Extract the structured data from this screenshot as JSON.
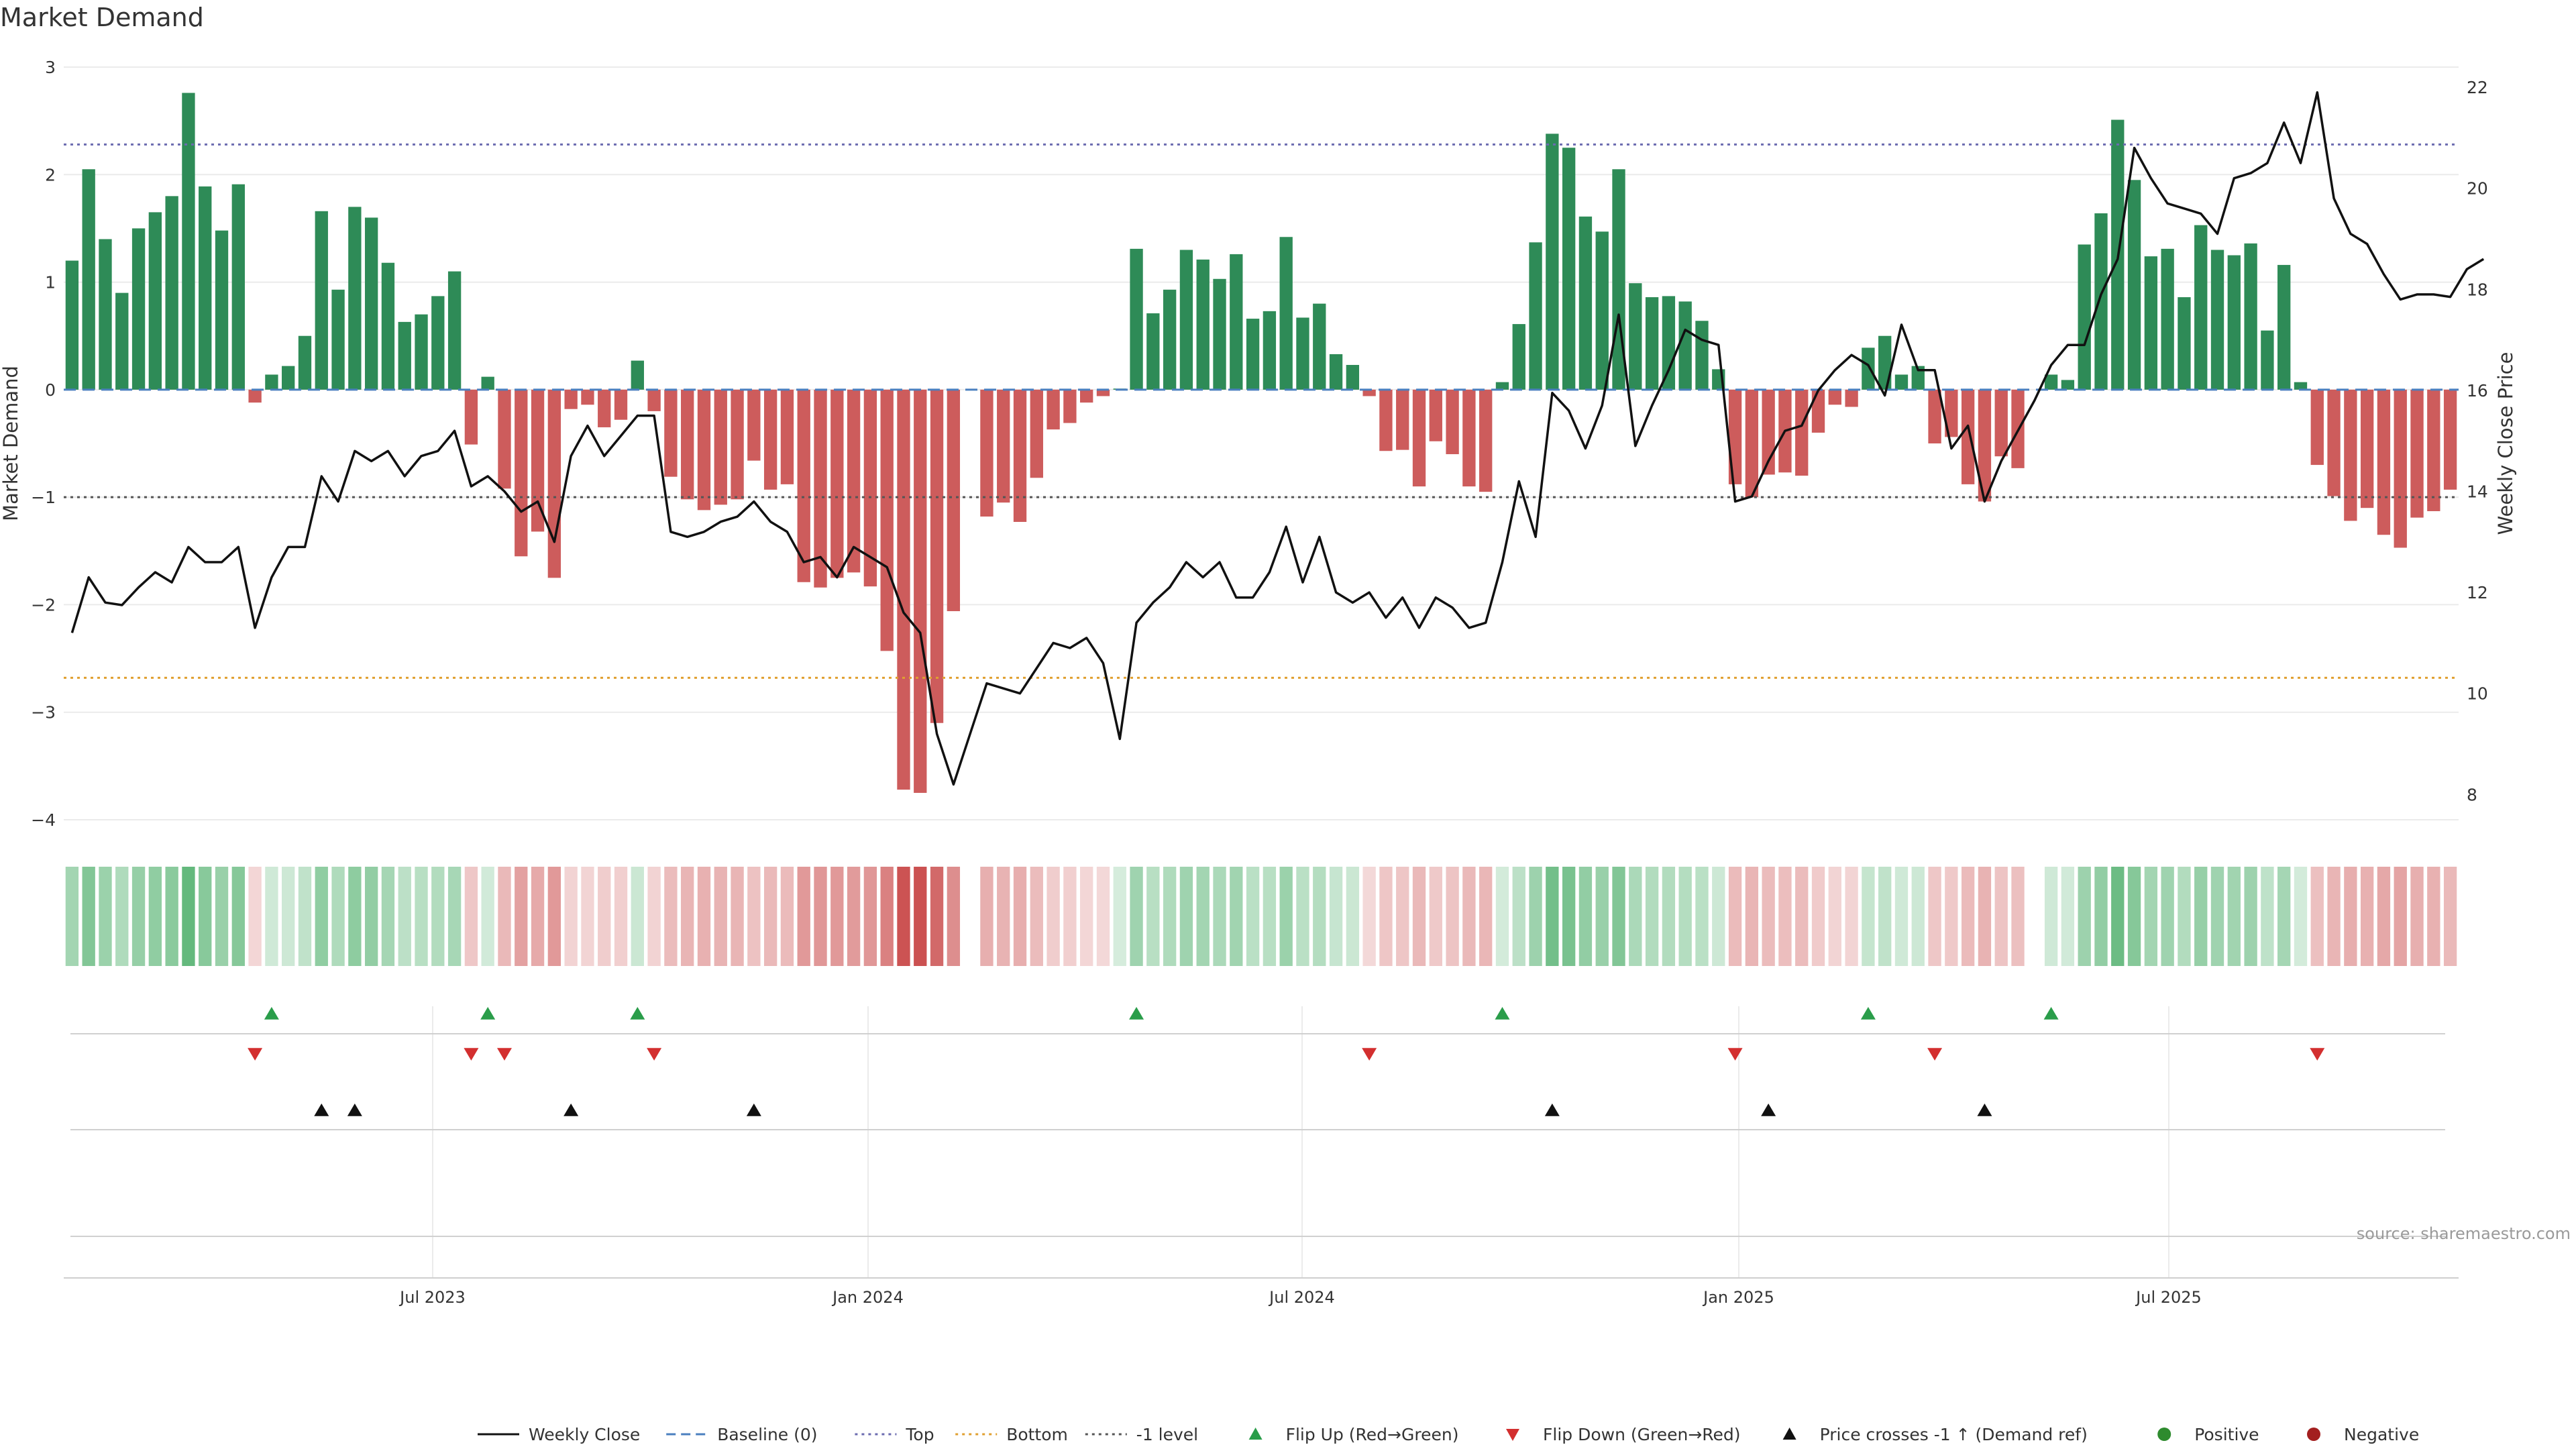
{
  "title": "Market Demand",
  "source_note": "source: sharemaestro.com",
  "colors": {
    "positive": "#2e8b57",
    "negative": "#cd5c5c",
    "price": "#111111",
    "baseline": "#4a7fbf",
    "top": "#6b6bb0",
    "bottom": "#e0a030",
    "minus_one": "#555555",
    "flip_up": "#2a9d4a",
    "flip_down": "#d32f2f",
    "cross": "#111111",
    "pos_dot": "#2e8b2e",
    "neg_dot": "#a31f1f"
  },
  "chart_data": {
    "type": "bar",
    "title": "Market Demand",
    "ylabel": "Market Demand",
    "ylabel_right": "Weekly Close Price",
    "ylim": [
      -4,
      3
    ],
    "ylim_right": [
      7.5,
      22.4
    ],
    "yticks": [
      "3",
      "2",
      "1",
      "0",
      "−1",
      "−2",
      "−3",
      "−4"
    ],
    "yticks_right": [
      "22",
      "20",
      "18",
      "16",
      "14",
      "12",
      "10",
      "8"
    ],
    "x_tick_labels": [
      "Jul 2023",
      "Jan 2024",
      "Jul 2024",
      "Jan 2025",
      "Jul 2025"
    ],
    "reference_levels": {
      "top": 2.28,
      "bottom": -2.68,
      "minus_one": -1.0,
      "baseline": 0
    },
    "demand": [
      1.2,
      2.05,
      1.4,
      0.9,
      1.5,
      1.65,
      1.8,
      2.76,
      1.89,
      1.48,
      1.91,
      -0.12,
      0.14,
      0.22,
      0.5,
      1.66,
      0.93,
      1.7,
      1.6,
      1.18,
      0.63,
      0.7,
      0.87,
      1.1,
      -0.51,
      0.12,
      -0.92,
      -1.55,
      -1.32,
      -1.75,
      -0.18,
      -0.14,
      -0.35,
      -0.28,
      0.27,
      -0.2,
      -0.81,
      -1.02,
      -1.12,
      -1.07,
      -1.02,
      -0.66,
      -0.93,
      -0.88,
      -1.79,
      -1.84,
      -1.75,
      -1.7,
      -1.83,
      -2.43,
      -3.72,
      -3.75,
      -3.1,
      -2.06,
      0,
      -1.18,
      -1.05,
      -1.23,
      -0.82,
      -0.37,
      -0.31,
      -0.12,
      -0.06,
      0.01,
      1.31,
      0.71,
      0.93,
      1.3,
      1.21,
      1.03,
      1.26,
      0.66,
      0.73,
      1.42,
      0.67,
      0.8,
      0.33,
      0.23,
      -0.06,
      -0.57,
      -0.56,
      -0.9,
      -0.48,
      -0.6,
      -0.9,
      -0.95,
      0.07,
      0.61,
      1.37,
      2.38,
      2.25,
      1.61,
      1.47,
      2.05,
      0.99,
      0.86,
      0.87,
      0.82,
      0.64,
      0.19,
      -0.88,
      -1.0,
      -0.79,
      -0.77,
      -0.8,
      -0.4,
      -0.14,
      -0.16,
      0.39,
      0.5,
      0.14,
      0.22,
      -0.5,
      -0.44,
      -0.88,
      -1.04,
      -0.62,
      -0.73,
      0,
      0.14,
      0.09,
      1.35,
      1.64,
      2.51,
      1.95,
      1.24,
      1.31,
      0.86,
      1.53,
      1.3,
      1.25,
      1.36,
      0.55,
      1.16,
      0.07,
      -0.7,
      -0.99,
      -1.22,
      -1.1,
      -1.35,
      -1.47,
      -1.19,
      -1.13,
      -0.93
    ],
    "price": [
      11.2,
      12.3,
      11.8,
      11.75,
      12.1,
      12.4,
      12.2,
      12.9,
      12.6,
      12.6,
      12.9,
      11.3,
      12.3,
      12.9,
      12.9,
      14.3,
      13.8,
      14.8,
      14.6,
      14.8,
      14.3,
      14.7,
      14.8,
      15.2,
      14.1,
      14.3,
      14.0,
      13.6,
      13.8,
      13.0,
      14.7,
      15.3,
      14.7,
      15.1,
      15.5,
      15.5,
      13.2,
      13.1,
      13.2,
      13.4,
      13.5,
      13.8,
      13.4,
      13.2,
      12.6,
      12.7,
      12.3,
      12.9,
      12.7,
      12.5,
      11.6,
      11.2,
      9.2,
      8.2,
      9.2,
      10.2,
      10.1,
      10.0,
      10.5,
      11.0,
      10.9,
      11.1,
      10.6,
      9.1,
      11.4,
      11.8,
      12.1,
      12.6,
      12.3,
      12.6,
      11.9,
      11.9,
      12.4,
      13.3,
      12.2,
      13.1,
      12.0,
      11.8,
      12.0,
      11.5,
      11.9,
      11.3,
      11.9,
      11.7,
      11.3,
      11.4,
      12.6,
      14.2,
      13.1,
      15.95,
      15.6,
      14.85,
      15.7,
      17.5,
      14.9,
      15.7,
      16.4,
      17.2,
      17.0,
      16.9,
      13.8,
      13.9,
      14.6,
      15.2,
      15.3,
      16.0,
      16.4,
      16.7,
      16.5,
      15.9,
      17.3,
      16.4,
      16.4,
      14.85,
      15.3,
      13.8,
      14.6,
      15.2,
      15.8,
      16.5,
      16.9,
      16.9,
      17.9,
      18.6,
      20.8,
      20.2,
      19.7,
      19.6,
      19.5,
      19.1,
      20.2,
      20.3,
      20.5,
      21.3,
      20.5,
      21.9,
      19.8,
      19.1,
      18.9,
      18.3,
      17.8,
      17.9,
      17.9,
      17.85,
      18.4,
      18.6
    ],
    "markers": {
      "flip_up": [
        12,
        25,
        34,
        64,
        86,
        108,
        119
      ],
      "flip_down": [
        11,
        24,
        26,
        35,
        78,
        100,
        112,
        135
      ],
      "price_cross": [
        15,
        17,
        30,
        41,
        89,
        102,
        115
      ]
    }
  },
  "legend": [
    {
      "label": "Weekly Close",
      "kind": "line-solid",
      "color": "#111111"
    },
    {
      "label": "Baseline (0)",
      "kind": "line-dash",
      "color": "#4a7fbf"
    },
    {
      "label": "Top",
      "kind": "line-dot",
      "color": "#6b6bb0"
    },
    {
      "label": "Bottom",
      "kind": "line-dot",
      "color": "#e0a030"
    },
    {
      "label": "-1 level",
      "kind": "line-dot",
      "color": "#555555"
    },
    {
      "label": "Flip Up (Red→Green)",
      "kind": "tri-up",
      "color": "#2a9d4a"
    },
    {
      "label": "Flip Down (Green→Red)",
      "kind": "tri-down",
      "color": "#d32f2f"
    },
    {
      "label": "Price crosses -1 ↑ (Demand ref)",
      "kind": "tri-up",
      "color": "#111111"
    },
    {
      "label": "Positive",
      "kind": "dot",
      "color": "#2e8b2e"
    },
    {
      "label": "Negative",
      "kind": "dot",
      "color": "#a31f1f"
    }
  ]
}
